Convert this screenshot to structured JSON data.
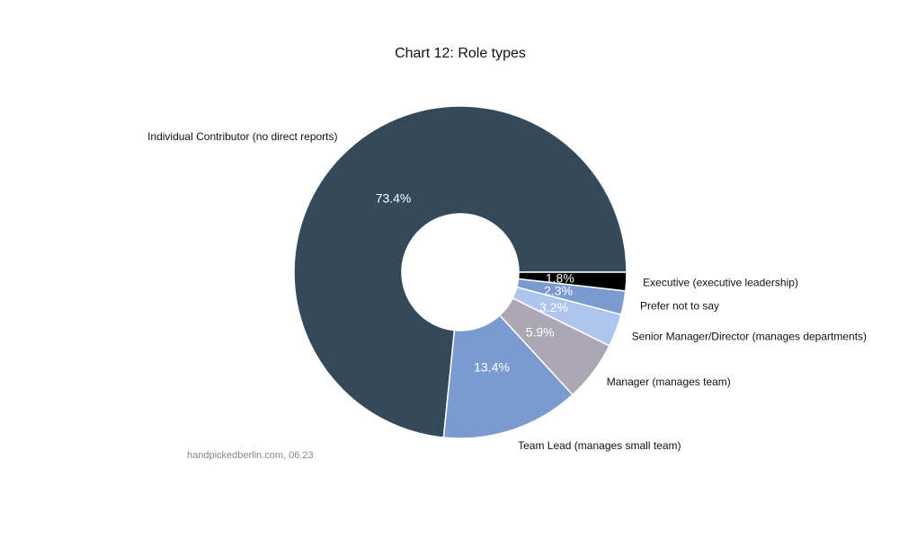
{
  "chart_data": {
    "type": "pie",
    "donut": true,
    "title": "Chart 12: Role types",
    "categories": [
      "Individual Contributor (no direct reports)",
      "Team Lead (manages small team)",
      "Manager (manages team)",
      "Senior Manager/Director (manages departments)",
      "Prefer not to say",
      "Executive (executive leadership)"
    ],
    "values": [
      73.4,
      13.4,
      5.9,
      3.2,
      2.3,
      1.8
    ],
    "value_labels": [
      "73.4%",
      "13.4%",
      "5.9%",
      "3.2%",
      "2.3%",
      "1.8%"
    ],
    "colors": [
      "#344a5a",
      "#7b9bd0",
      "#aca8b3",
      "#aec6ee",
      "#7b9bd0",
      "#000000"
    ],
    "start_angle_deg": 0,
    "direction": "counterclockwise"
  },
  "footer": {
    "source": "handpickedberlin.com, 06.23"
  }
}
